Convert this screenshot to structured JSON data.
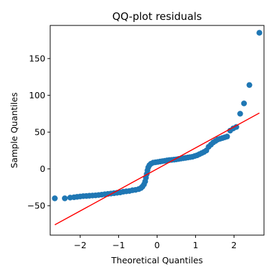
{
  "chart_data": {
    "type": "scatter",
    "title": "QQ-plot residuals",
    "xlabel": "Theoretical Quantiles",
    "ylabel": "Sample Quantiles",
    "xlim": [
      -2.78,
      2.78
    ],
    "ylim": [
      -90,
      195
    ],
    "xticks": [
      -2,
      -1,
      0,
      1,
      2
    ],
    "xtick_labels": [
      "−2",
      "−1",
      "0",
      "1",
      "2"
    ],
    "yticks": [
      -50,
      0,
      50,
      100,
      150
    ],
    "yticks_labels": [
      "−50",
      "0",
      "50",
      "100",
      "150"
    ],
    "grid": false,
    "colors": {
      "points": "#1f77b4",
      "reference_line": "#ff0000"
    },
    "reference_line": {
      "x": [
        -2.66,
        2.66
      ],
      "y": [
        -76,
        76
      ]
    },
    "series": [
      {
        "values": [
          {
            "x": -2.66,
            "y": -40
          },
          {
            "x": -2.4,
            "y": -40
          },
          {
            "x": -2.26,
            "y": -39
          },
          {
            "x": -2.16,
            "y": -38.5
          },
          {
            "x": -2.08,
            "y": -38
          },
          {
            "x": -2.0,
            "y": -37.5
          },
          {
            "x": -1.92,
            "y": -37
          },
          {
            "x": -1.84,
            "y": -36.8
          },
          {
            "x": -1.76,
            "y": -36.5
          },
          {
            "x": -1.68,
            "y": -36.2
          },
          {
            "x": -1.6,
            "y": -36
          },
          {
            "x": -1.52,
            "y": -35.5
          },
          {
            "x": -1.44,
            "y": -35
          },
          {
            "x": -1.36,
            "y": -34.5
          },
          {
            "x": -1.28,
            "y": -34
          },
          {
            "x": -1.2,
            "y": -33.5
          },
          {
            "x": -1.12,
            "y": -33
          },
          {
            "x": -1.04,
            "y": -32.5
          },
          {
            "x": -0.96,
            "y": -32
          },
          {
            "x": -0.88,
            "y": -31
          },
          {
            "x": -0.8,
            "y": -30.5
          },
          {
            "x": -0.72,
            "y": -30
          },
          {
            "x": -0.64,
            "y": -29
          },
          {
            "x": -0.56,
            "y": -28.5
          },
          {
            "x": -0.48,
            "y": -27.5
          },
          {
            "x": -0.42,
            "y": -26
          },
          {
            "x": -0.38,
            "y": -24
          },
          {
            "x": -0.34,
            "y": -21
          },
          {
            "x": -0.31,
            "y": -17
          },
          {
            "x": -0.29,
            "y": -12
          },
          {
            "x": -0.27,
            "y": -7
          },
          {
            "x": -0.25,
            "y": -2
          },
          {
            "x": -0.23,
            "y": 2
          },
          {
            "x": -0.2,
            "y": 5
          },
          {
            "x": -0.16,
            "y": 7
          },
          {
            "x": -0.1,
            "y": 8.5
          },
          {
            "x": -0.04,
            "y": 9
          },
          {
            "x": 0.02,
            "y": 9.5
          },
          {
            "x": 0.08,
            "y": 10
          },
          {
            "x": 0.14,
            "y": 10.5
          },
          {
            "x": 0.2,
            "y": 11
          },
          {
            "x": 0.26,
            "y": 11.5
          },
          {
            "x": 0.32,
            "y": 12
          },
          {
            "x": 0.38,
            "y": 12.3
          },
          {
            "x": 0.44,
            "y": 12.6
          },
          {
            "x": 0.5,
            "y": 13
          },
          {
            "x": 0.56,
            "y": 13.5
          },
          {
            "x": 0.62,
            "y": 14
          },
          {
            "x": 0.68,
            "y": 14.5
          },
          {
            "x": 0.74,
            "y": 15
          },
          {
            "x": 0.8,
            "y": 15.5
          },
          {
            "x": 0.86,
            "y": 16
          },
          {
            "x": 0.92,
            "y": 16.5
          },
          {
            "x": 0.98,
            "y": 17.5
          },
          {
            "x": 1.04,
            "y": 18.5
          },
          {
            "x": 1.1,
            "y": 20
          },
          {
            "x": 1.16,
            "y": 21.5
          },
          {
            "x": 1.22,
            "y": 23
          },
          {
            "x": 1.28,
            "y": 25
          },
          {
            "x": 1.34,
            "y": 30
          },
          {
            "x": 1.4,
            "y": 33
          },
          {
            "x": 1.46,
            "y": 36
          },
          {
            "x": 1.52,
            "y": 38
          },
          {
            "x": 1.58,
            "y": 40
          },
          {
            "x": 1.64,
            "y": 41
          },
          {
            "x": 1.7,
            "y": 42
          },
          {
            "x": 1.76,
            "y": 43
          },
          {
            "x": 1.82,
            "y": 44
          },
          {
            "x": 1.9,
            "y": 52
          },
          {
            "x": 1.98,
            "y": 55
          },
          {
            "x": 2.06,
            "y": 57
          },
          {
            "x": 2.16,
            "y": 75
          },
          {
            "x": 2.26,
            "y": 89
          },
          {
            "x": 2.4,
            "y": 114
          },
          {
            "x": 2.66,
            "y": 185
          }
        ]
      }
    ]
  }
}
